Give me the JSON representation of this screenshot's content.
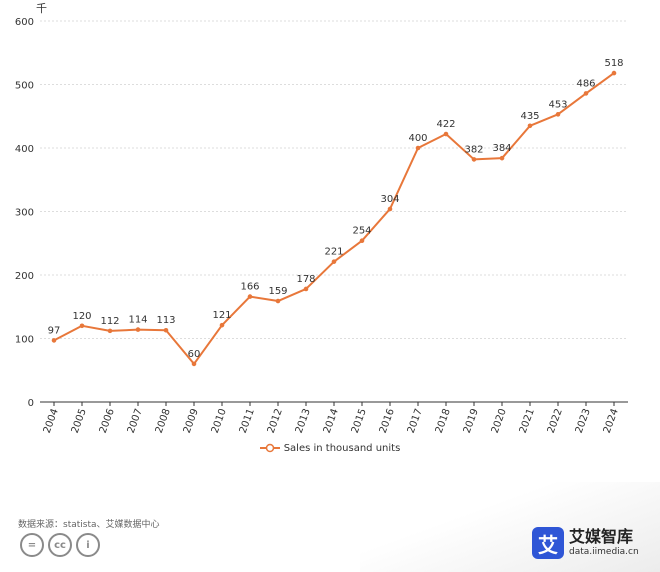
{
  "unit_label": "千",
  "legend_label": "Sales in thousand units",
  "source": "数据来源：statista、艾媒数据中心",
  "license_icons": [
    {
      "name": "equals-icon",
      "glyph": "="
    },
    {
      "name": "cc-icon",
      "glyph": "cc"
    },
    {
      "name": "person-icon",
      "glyph": "i"
    }
  ],
  "brand": {
    "logo": "艾",
    "name": "艾媒智库",
    "url": "data.iimedia.cn"
  },
  "colors": {
    "line": "#e8773a",
    "grid": "#dddddd",
    "axis": "#333333"
  },
  "chart_data": {
    "type": "line",
    "grid": true,
    "legend_position": "bottom",
    "ylim": [
      0,
      600
    ],
    "yticks": [
      0,
      100,
      200,
      300,
      400,
      500,
      600
    ],
    "categories": [
      "2004",
      "2005",
      "2006",
      "2007",
      "2008",
      "2009",
      "2010",
      "2011",
      "2012",
      "2013",
      "2014",
      "2015",
      "2016",
      "2017",
      "2018",
      "2019",
      "2020",
      "2021",
      "2022",
      "2023",
      "2024"
    ],
    "series": [
      {
        "name": "Sales in thousand units",
        "values": [
          97,
          120,
          112,
          114,
          113,
          60,
          121,
          166,
          159,
          178,
          221,
          254,
          304,
          400,
          422,
          382,
          384,
          435,
          453,
          486,
          518
        ]
      }
    ]
  }
}
